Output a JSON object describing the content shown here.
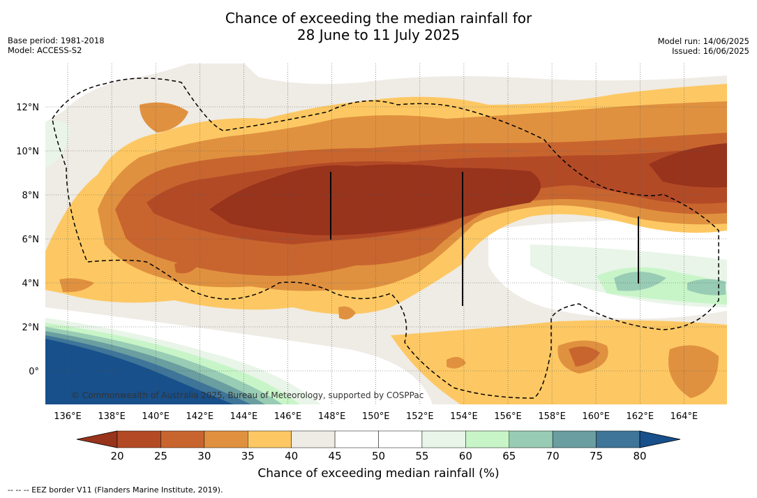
{
  "title_line1": "Chance of exceeding the median rainfall for",
  "title_line2": "28 June to 11 July 2025",
  "meta_left": {
    "base_period": "Base period: 1981-2018",
    "model": "Model: ACCESS-S2"
  },
  "meta_right": {
    "model_run": "Model run: 14/06/2025",
    "issued": "Issued: 16/06/2025"
  },
  "lon_ticks": [
    "136°E",
    "138°E",
    "140°E",
    "142°E",
    "144°E",
    "146°E",
    "148°E",
    "150°E",
    "152°E",
    "154°E",
    "156°E",
    "158°E",
    "160°E",
    "162°E",
    "164°E"
  ],
  "lat_ticks": [
    "12°N",
    "10°N",
    "8°N",
    "6°N",
    "4°N",
    "2°N",
    "0°"
  ],
  "watermark": "© Commonwealth of Australia 2025, Bureau of Meteorology, supported by COSPPac",
  "colorbar": {
    "ticks": [
      "20",
      "25",
      "30",
      "35",
      "40",
      "45",
      "50",
      "55",
      "60",
      "65",
      "70",
      "75",
      "80"
    ],
    "colors": [
      "#98331c",
      "#b34a26",
      "#c8652f",
      "#e0913f",
      "#fdc863",
      "#efebe5",
      "#ffffff",
      "#ffffff",
      "#e8f5e8",
      "#c8f5c8",
      "#98ccb4",
      "#6a9ea0",
      "#3e7598",
      "#17508b"
    ],
    "title": "Chance of exceeding median rainfall (%)"
  },
  "footnote": "--  --  -- EEZ border V11 (Flanders Marine Institute, 2019)."
}
